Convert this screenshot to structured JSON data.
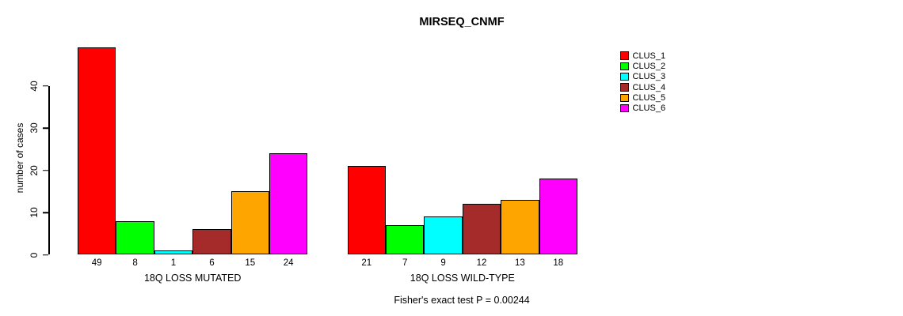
{
  "chart_data": {
    "type": "bar",
    "title": "MIRSEQ_CNMF",
    "ylabel": "number of cases",
    "ylim": [
      0,
      40
    ],
    "yticks": [
      0,
      10,
      20,
      30,
      40
    ],
    "grid": false,
    "legend_position": "right",
    "categories": [
      "18Q LOSS MUTATED",
      "18Q LOSS WILD-TYPE"
    ],
    "series": [
      {
        "name": "CLUS_1",
        "color": "#FF0000",
        "values": [
          49,
          21
        ]
      },
      {
        "name": "CLUS_2",
        "color": "#00FF00",
        "values": [
          8,
          7
        ]
      },
      {
        "name": "CLUS_3",
        "color": "#00FFFF",
        "values": [
          1,
          9
        ]
      },
      {
        "name": "CLUS_4",
        "color": "#A52A2A",
        "values": [
          6,
          12
        ]
      },
      {
        "name": "CLUS_5",
        "color": "#FFA500",
        "values": [
          15,
          13
        ]
      },
      {
        "name": "CLUS_6",
        "color": "#FF00FF",
        "values": [
          24,
          18
        ]
      }
    ],
    "annotation": "Fisher's exact test P = 0.00244"
  }
}
